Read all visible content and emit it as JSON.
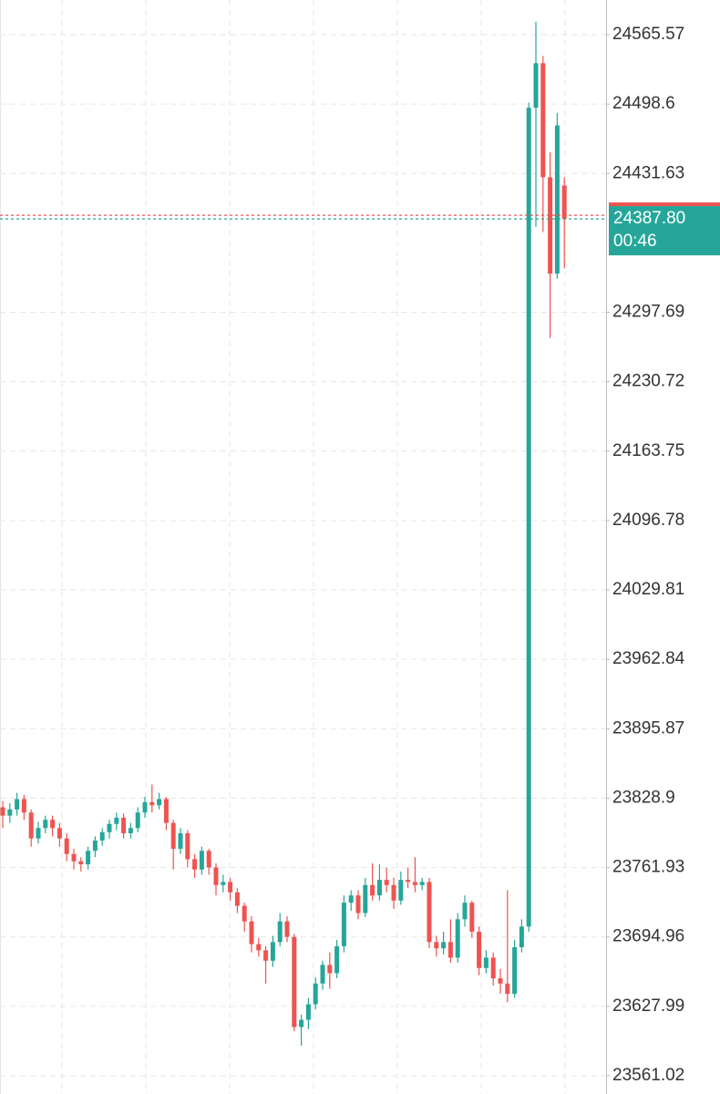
{
  "chart_data": {
    "type": "candlestick",
    "open": [
      23820,
      23812,
      23818,
      23828,
      23815,
      23790,
      23800,
      23808,
      23800,
      23790,
      23775,
      23768,
      23765,
      23778,
      23788,
      23796,
      23804,
      23810,
      23795,
      23800,
      23815,
      23825,
      23822,
      23828,
      23805,
      23780,
      23795,
      23770,
      23760,
      23778,
      23762,
      23745,
      23748,
      23738,
      23725,
      23710,
      23688,
      23682,
      23672,
      23690,
      23710,
      23695,
      23608,
      23615,
      23630,
      23650,
      23668,
      23660,
      23686,
      23728,
      23735,
      23718,
      23745,
      23735,
      23750,
      23745,
      23730,
      23750,
      23748,
      23745,
      23748,
      23690,
      23684,
      23690,
      23675,
      23712,
      23728,
      23700,
      23665,
      23675,
      23655,
      23650,
      23640,
      23685,
      23705,
      24495,
      24538,
      24428,
      24335,
      24420
    ],
    "high": [
      23826,
      23824,
      23834,
      23832,
      23818,
      23806,
      23812,
      23812,
      23805,
      23795,
      23780,
      23772,
      23782,
      23792,
      23800,
      23808,
      23815,
      23814,
      23805,
      23820,
      23830,
      23842,
      23834,
      23830,
      23808,
      23800,
      23798,
      23775,
      23782,
      23780,
      23766,
      23755,
      23752,
      23742,
      23728,
      23715,
      23694,
      23686,
      23696,
      23718,
      23715,
      23698,
      23620,
      23636,
      23656,
      23672,
      23680,
      23692,
      23735,
      23740,
      23740,
      23752,
      23766,
      23765,
      23762,
      23752,
      23758,
      23762,
      23772,
      23752,
      23752,
      23696,
      23700,
      23712,
      23718,
      23735,
      23730,
      23705,
      23682,
      23680,
      23664,
      23740,
      23692,
      23712,
      24500,
      24578,
      24545,
      24452,
      24490,
      24428
    ],
    "low": [
      23800,
      23805,
      23812,
      23808,
      23782,
      23785,
      23795,
      23792,
      23782,
      23768,
      23760,
      23758,
      23760,
      23772,
      23783,
      23790,
      23798,
      23790,
      23790,
      23796,
      23810,
      23815,
      23818,
      23798,
      23760,
      23775,
      23762,
      23752,
      23755,
      23755,
      23735,
      23738,
      23730,
      23718,
      23700,
      23680,
      23676,
      23650,
      23666,
      23686,
      23690,
      23604,
      23590,
      23606,
      23625,
      23644,
      23645,
      23655,
      23680,
      23720,
      23712,
      23714,
      23730,
      23730,
      23738,
      23722,
      23726,
      23742,
      23738,
      23740,
      23684,
      23676,
      23678,
      23670,
      23670,
      23705,
      23694,
      23658,
      23660,
      23648,
      23640,
      23632,
      23636,
      23680,
      23700,
      24380,
      24375,
      24273,
      24330,
      24340
    ],
    "close": [
      23812,
      23818,
      23828,
      23815,
      23790,
      23800,
      23808,
      23800,
      23790,
      23775,
      23768,
      23765,
      23778,
      23788,
      23796,
      23804,
      23810,
      23795,
      23800,
      23815,
      23825,
      23822,
      23828,
      23805,
      23780,
      23795,
      23770,
      23760,
      23778,
      23762,
      23745,
      23748,
      23738,
      23725,
      23710,
      23688,
      23682,
      23672,
      23690,
      23710,
      23695,
      23608,
      23615,
      23630,
      23650,
      23668,
      23660,
      23686,
      23728,
      23735,
      23718,
      23745,
      23735,
      23750,
      23745,
      23730,
      23750,
      23748,
      23745,
      23748,
      23690,
      23684,
      23690,
      23675,
      23712,
      23728,
      23700,
      23665,
      23675,
      23655,
      23650,
      23640,
      23685,
      23705,
      24495,
      24538,
      24428,
      24335,
      24478,
      24388
    ],
    "up_color": "#26a69a",
    "down_color": "#ef5350",
    "ylim": [
      23543.4,
      24599.0
    ],
    "yticks": [
      24565.57,
      24498.6,
      24431.63,
      24297.69,
      24230.72,
      24163.75,
      24096.78,
      24029.81,
      23962.84,
      23895.87,
      23828.9,
      23761.93,
      23694.96,
      23627.99,
      23561.02
    ],
    "ytick_labels_note_free": null,
    "last_price": {
      "value": 24387.8,
      "label": "24387.80"
    },
    "countdown": "00:46",
    "grid": true
  }
}
